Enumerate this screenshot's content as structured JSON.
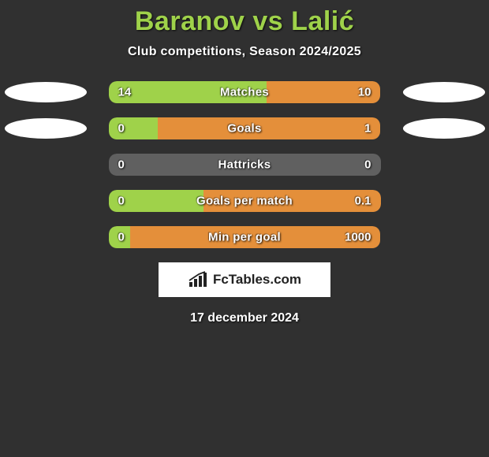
{
  "title": "Baranov vs Lalić",
  "subtitle": "Club competitions, Season 2024/2025",
  "date": "17 december 2024",
  "colors": {
    "background": "#303030",
    "title": "#9fd24a",
    "left_accent": "#9fd24a",
    "right_accent": "#e48f3a",
    "neutral_bar": "#606060",
    "ellipse": "#ffffff",
    "brand_bg": "#ffffff",
    "brand_text": "#222222"
  },
  "ellipses": {
    "left_rows": [
      0,
      1
    ],
    "right_rows": [
      0,
      1
    ]
  },
  "bars": [
    {
      "label": "Matches",
      "left_value": "14",
      "right_value": "10",
      "left_pct": 58,
      "right_pct": 42,
      "left_color": "#9fd24a",
      "right_color": "#e48f3a"
    },
    {
      "label": "Goals",
      "left_value": "0",
      "right_value": "1",
      "left_pct": 18,
      "right_pct": 82,
      "left_color": "#9fd24a",
      "right_color": "#e48f3a"
    },
    {
      "label": "Hattricks",
      "left_value": "0",
      "right_value": "0",
      "left_pct": 100,
      "right_pct": 0,
      "left_color": "#606060",
      "right_color": "#606060"
    },
    {
      "label": "Goals per match",
      "left_value": "0",
      "right_value": "0.1",
      "left_pct": 35,
      "right_pct": 65,
      "left_color": "#9fd24a",
      "right_color": "#e48f3a"
    },
    {
      "label": "Min per goal",
      "left_value": "0",
      "right_value": "1000",
      "left_pct": 8,
      "right_pct": 92,
      "left_color": "#9fd24a",
      "right_color": "#e48f3a"
    }
  ],
  "brand": {
    "text": "FcTables.com"
  }
}
